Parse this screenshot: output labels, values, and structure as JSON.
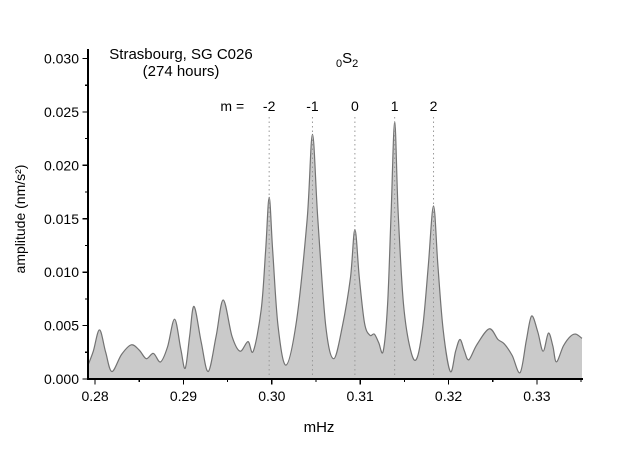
{
  "chart_data": {
    "type": "area",
    "title_line1": "Strasbourg, SG C026",
    "title_line2": "(274 hours)",
    "mode": {
      "pre_sub": "0",
      "letter": "S",
      "post_sub": "2"
    },
    "xlabel": "mHz",
    "ylabel": "amplitude (nm/s²)",
    "xlim": [
      0.2792,
      0.3351
    ],
    "ylim": [
      0,
      0.0308
    ],
    "grid": false,
    "legend": null,
    "x_major_ticks": {
      "values": [
        0.28,
        0.29,
        0.3,
        0.31,
        0.32,
        0.33
      ],
      "labels": [
        "0.28",
        "0.29",
        "0.30",
        "0.31",
        "0.32",
        "0.33"
      ]
    },
    "x_minor_ticks": [
      0.285,
      0.295,
      0.305,
      0.315,
      0.325,
      0.335
    ],
    "y_major_ticks": {
      "values": [
        0,
        0.005,
        0.01,
        0.015,
        0.02,
        0.025,
        0.03
      ],
      "labels": [
        "0.000",
        "0.005",
        "0.010",
        "0.015",
        "0.020",
        "0.025",
        "0.030"
      ]
    },
    "y_minor_ticks": [
      0.0025,
      0.0075,
      0.0125,
      0.0175,
      0.0225,
      0.0275
    ],
    "m_annotation": {
      "prefix": "m =",
      "items": [
        {
          "label": "-2",
          "x": 0.2997,
          "peak_amplitude": 0.017
        },
        {
          "label": "-1",
          "x": 0.3046,
          "peak_amplitude": 0.0229
        },
        {
          "label": "0",
          "x": 0.3094,
          "peak_amplitude": 0.014
        },
        {
          "label": "1",
          "x": 0.3139,
          "peak_amplitude": 0.0241
        },
        {
          "label": "2",
          "x": 0.3183,
          "peak_amplitude": 0.0162
        }
      ]
    },
    "colors": {
      "axis": "#000000",
      "area_fill": "#cacaca",
      "area_stroke": "#737373",
      "dash_line": "#999999"
    },
    "series": [
      {
        "name": "amplitude spectrum",
        "points": [
          [
            0.2792,
            0.0013
          ],
          [
            0.2798,
            0.0026
          ],
          [
            0.2805,
            0.0046
          ],
          [
            0.2812,
            0.0025
          ],
          [
            0.2819,
            0.0007
          ],
          [
            0.283,
            0.0023
          ],
          [
            0.2841,
            0.0032
          ],
          [
            0.285,
            0.0027
          ],
          [
            0.2858,
            0.0019
          ],
          [
            0.2866,
            0.0024
          ],
          [
            0.2874,
            0.0016
          ],
          [
            0.2882,
            0.003
          ],
          [
            0.289,
            0.0056
          ],
          [
            0.2897,
            0.0028
          ],
          [
            0.2902,
            0.001
          ],
          [
            0.2907,
            0.004
          ],
          [
            0.2912,
            0.0068
          ],
          [
            0.292,
            0.0035
          ],
          [
            0.2928,
            0.0007
          ],
          [
            0.2937,
            0.004
          ],
          [
            0.2945,
            0.0074
          ],
          [
            0.2955,
            0.004
          ],
          [
            0.2964,
            0.0026
          ],
          [
            0.2973,
            0.0035
          ],
          [
            0.2979,
            0.0026
          ],
          [
            0.2988,
            0.0065
          ],
          [
            0.2993,
            0.012
          ],
          [
            0.2997,
            0.017
          ],
          [
            0.3001,
            0.012
          ],
          [
            0.3007,
            0.005
          ],
          [
            0.3016,
            0.0013
          ],
          [
            0.3028,
            0.0055
          ],
          [
            0.304,
            0.015
          ],
          [
            0.3046,
            0.0229
          ],
          [
            0.3052,
            0.015
          ],
          [
            0.3061,
            0.005
          ],
          [
            0.307,
            0.0019
          ],
          [
            0.308,
            0.005
          ],
          [
            0.3089,
            0.0095
          ],
          [
            0.3094,
            0.014
          ],
          [
            0.3099,
            0.0095
          ],
          [
            0.3105,
            0.0052
          ],
          [
            0.3111,
            0.0041
          ],
          [
            0.3116,
            0.0042
          ],
          [
            0.3121,
            0.0034
          ],
          [
            0.3126,
            0.0026
          ],
          [
            0.3131,
            0.007
          ],
          [
            0.3135,
            0.0155
          ],
          [
            0.3139,
            0.0241
          ],
          [
            0.3143,
            0.0155
          ],
          [
            0.3149,
            0.007
          ],
          [
            0.3157,
            0.0027
          ],
          [
            0.3164,
            0.0019
          ],
          [
            0.3171,
            0.005
          ],
          [
            0.3177,
            0.0105
          ],
          [
            0.3183,
            0.0162
          ],
          [
            0.3188,
            0.0105
          ],
          [
            0.3194,
            0.0045
          ],
          [
            0.3202,
            0.0007
          ],
          [
            0.3208,
            0.0026
          ],
          [
            0.3213,
            0.0037
          ],
          [
            0.3218,
            0.0026
          ],
          [
            0.3223,
            0.0018
          ],
          [
            0.3232,
            0.0032
          ],
          [
            0.3246,
            0.0047
          ],
          [
            0.3256,
            0.0037
          ],
          [
            0.3263,
            0.0033
          ],
          [
            0.3272,
            0.0022
          ],
          [
            0.3281,
            0.0006
          ],
          [
            0.3288,
            0.0036
          ],
          [
            0.3294,
            0.0059
          ],
          [
            0.3301,
            0.0044
          ],
          [
            0.3307,
            0.0026
          ],
          [
            0.3313,
            0.0043
          ],
          [
            0.3318,
            0.0031
          ],
          [
            0.3322,
            0.0016
          ],
          [
            0.333,
            0.0031
          ],
          [
            0.3338,
            0.004
          ],
          [
            0.3344,
            0.0042
          ],
          [
            0.3351,
            0.0038
          ]
        ]
      }
    ]
  }
}
